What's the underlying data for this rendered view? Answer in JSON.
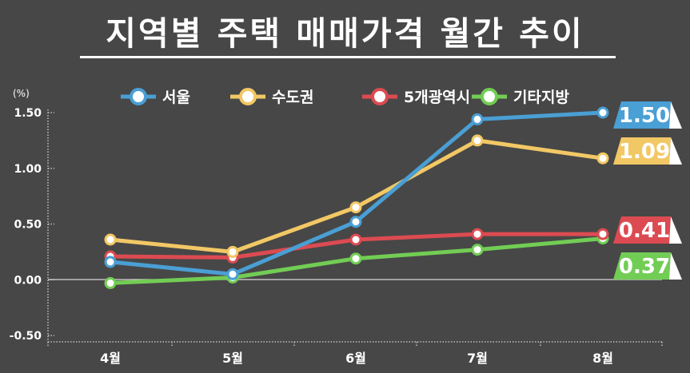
{
  "title": "지역별 주택 매매가격 월간 추이",
  "chart_data": {
    "type": "line",
    "title": "지역별 주택 매매가격 월간 추이",
    "ylabel": "(%)",
    "xlabel": "",
    "categories": [
      "4월",
      "5월",
      "6월",
      "7월",
      "8월"
    ],
    "ylim": [
      -0.5,
      1.5
    ],
    "yticks": [
      "-0.50",
      "0.00",
      "0.50",
      "1.00",
      "1.50"
    ],
    "grid": false,
    "legend_position": "top",
    "series": [
      {
        "name": "서울",
        "color": "#4a9fd4",
        "values": [
          0.16,
          0.05,
          0.52,
          1.44,
          1.5
        ],
        "end_label": "1.50"
      },
      {
        "name": "수도권",
        "color": "#f2c865",
        "values": [
          0.36,
          0.25,
          0.65,
          1.25,
          1.09
        ],
        "end_label": "1.09"
      },
      {
        "name": "5개광역시",
        "color": "#dc4b51",
        "values": [
          0.21,
          0.2,
          0.36,
          0.41,
          0.41
        ],
        "end_label": "0.41"
      },
      {
        "name": "기타지방",
        "color": "#72cd54",
        "values": [
          -0.03,
          0.02,
          0.19,
          0.27,
          0.37
        ],
        "end_label": "0.37"
      }
    ]
  }
}
